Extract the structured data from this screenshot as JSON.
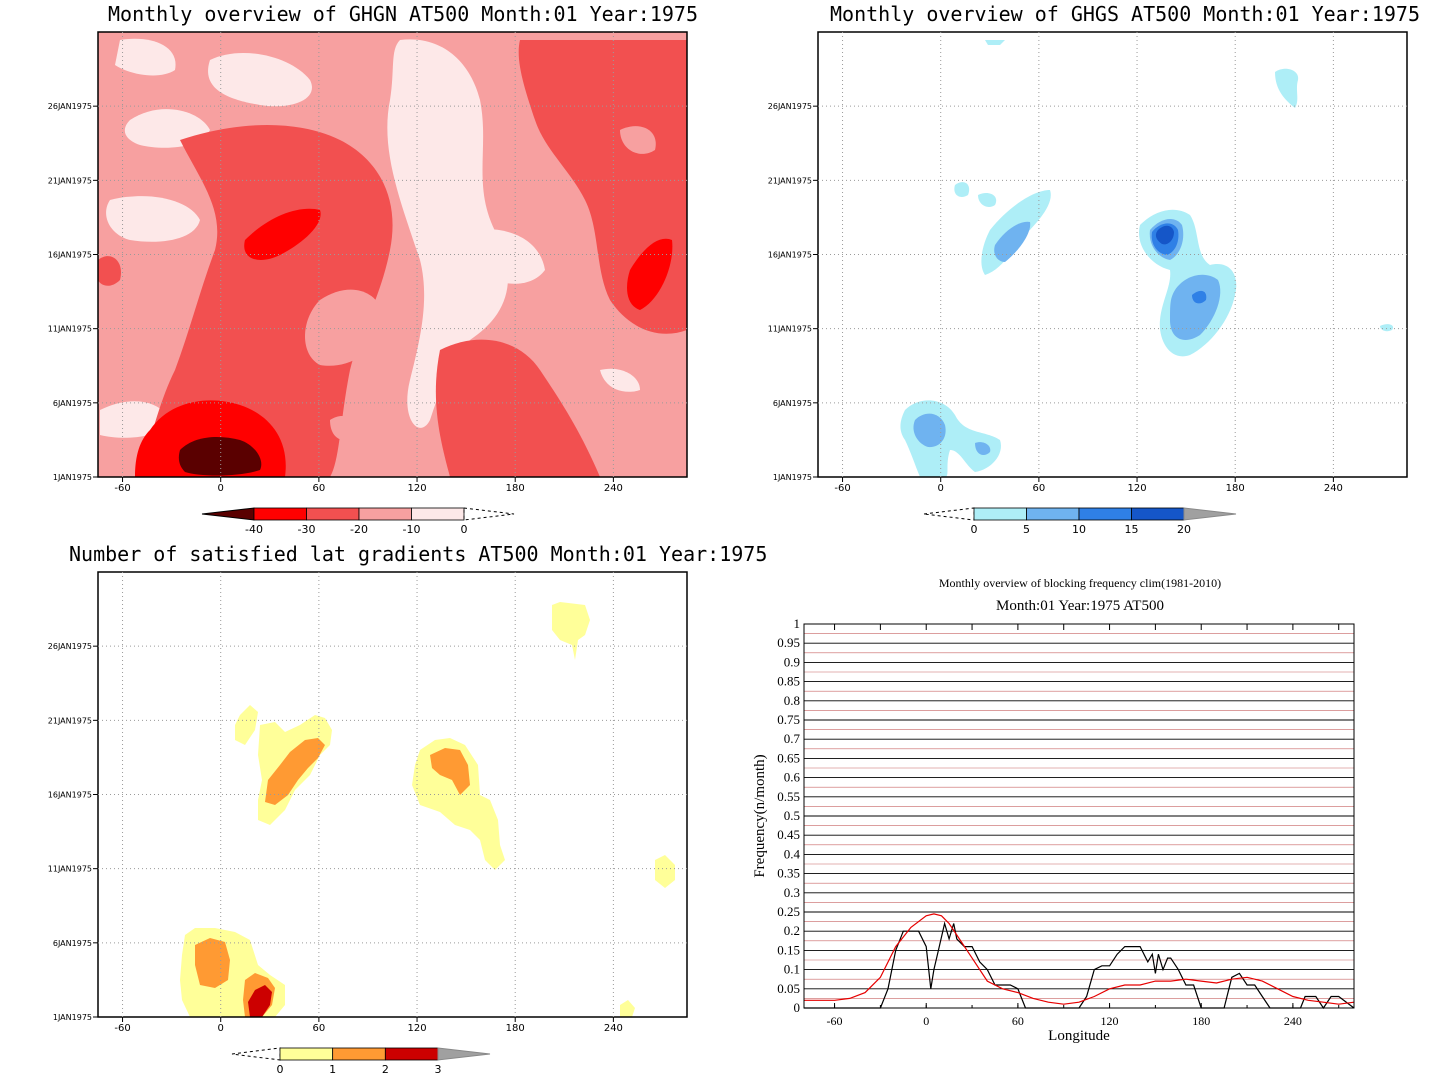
{
  "panels": {
    "ghgn": {
      "title": "Monthly overview of GHGN AT500 Month:01 Year:1975",
      "x_ticks": [
        "-60",
        "0",
        "60",
        "120",
        "180",
        "240"
      ],
      "y_ticks": [
        "1JAN1975",
        "6JAN1975",
        "11JAN1975",
        "16JAN1975",
        "21JAN1975",
        "26JAN1975"
      ],
      "colorbar": {
        "labels": [
          "-40",
          "-30",
          "-20",
          "-10",
          "0"
        ],
        "colors": [
          "#5a0000",
          "#ff0000",
          "#f25050",
          "#f7a0a0",
          "#fde8e8"
        ]
      }
    },
    "ghgs": {
      "title": "Monthly overview of GHGS AT500 Month:01 Year:1975",
      "x_ticks": [
        "-60",
        "0",
        "60",
        "120",
        "180",
        "240"
      ],
      "y_ticks": [
        "1JAN1975",
        "6JAN1975",
        "11JAN1975",
        "16JAN1975",
        "21JAN1975",
        "26JAN1975"
      ],
      "colorbar": {
        "labels": [
          "0",
          "5",
          "10",
          "15",
          "20"
        ],
        "colors": [
          "#aeeef7",
          "#6fb3f0",
          "#2f80e6",
          "#1556c8",
          "#a0a0a0"
        ]
      }
    },
    "lat": {
      "title": "Number of satisfied lat gradients AT500 Month:01 Year:1975",
      "x_ticks": [
        "-60",
        "0",
        "60",
        "120",
        "180",
        "240"
      ],
      "y_ticks": [
        "1JAN1975",
        "6JAN1975",
        "11JAN1975",
        "16JAN1975",
        "21JAN1975",
        "26JAN1975"
      ],
      "colorbar": {
        "labels": [
          "0",
          "1",
          "2",
          "3"
        ],
        "colors": [
          "#ffff99",
          "#ff9a33",
          "#cc0000",
          "#a0a0a0"
        ]
      }
    },
    "freq": {
      "title": "Monthly overview of blocking frequency clim(1981-2010)",
      "subtitle": "Month:01 Year:1975  AT500"
    }
  },
  "chart_data": [
    {
      "type": "heatmap",
      "title": "Monthly overview of GHGN AT500 Month:01 Year:1975",
      "x_range": [
        -75,
        285
      ],
      "y_range_days": [
        1,
        31
      ],
      "levels": [
        -40,
        -30,
        -20,
        -10,
        0
      ],
      "note_features": [
        "deep minimum below -40 near lon -20..10 at 2-3JAN",
        "band below -30 near lon 20..60 at 16-18JAN",
        "band below -30 near lon 240..270 at 13-16JAN"
      ]
    },
    {
      "type": "heatmap",
      "title": "Monthly overview of GHGS AT500 Month:01 Year:1975",
      "x_range": [
        -75,
        285
      ],
      "y_range_days": [
        1,
        31
      ],
      "levels": [
        0,
        5,
        10,
        15,
        20
      ],
      "note_features": [
        "maximum 15-20 near lon 130 at 17JAN",
        "10-15 near lon 145 at 13JAN",
        "5-10 near lon -10 at 4JAN"
      ]
    },
    {
      "type": "heatmap",
      "title": "Number of satisfied lat gradients AT500 Month:01 Year:1975",
      "x_range": [
        -75,
        285
      ],
      "y_range_days": [
        1,
        31
      ],
      "levels": [
        0,
        1,
        2,
        3
      ],
      "note_features": [
        "value 3 near lon 20 at 2JAN",
        "value 2 near lon 40..55 at 17-19JAN",
        "value 2 near lon 135 at 18JAN"
      ]
    },
    {
      "type": "line",
      "title": "Monthly overview of blocking frequency clim(1981-2010)",
      "subtitle": "Month:01 Year:1975  AT500",
      "xlabel": "Longitude",
      "ylabel": "Frequency(n/month)",
      "xlim": [
        -80,
        280
      ],
      "ylim": [
        0,
        1
      ],
      "x_ticks": [
        -60,
        0,
        60,
        120,
        180,
        240
      ],
      "y_ticks": [
        0,
        0.05,
        0.1,
        0.15,
        0.2,
        0.25,
        0.3,
        0.35,
        0.4,
        0.45,
        0.5,
        0.55,
        0.6,
        0.65,
        0.7,
        0.75,
        0.8,
        0.85,
        0.9,
        0.95,
        1
      ],
      "y_tick_labels": [
        "0",
        "0.05",
        "0.1",
        "0.15",
        "0.2",
        "0.25",
        "0.3",
        "0.35",
        "0.4",
        "0.45",
        "0.5",
        "0.55",
        "0.6",
        "0.65",
        "0.7",
        "0.75",
        "0.8",
        "0.85",
        "0.9",
        "0.95",
        "1"
      ],
      "grid": true,
      "series": [
        {
          "color": "#000000",
          "x": [
            -80,
            -30,
            -25,
            -20,
            -15,
            -10,
            -5,
            0,
            3,
            5,
            8,
            12,
            15,
            18,
            20,
            25,
            30,
            35,
            40,
            45,
            50,
            55,
            60,
            62,
            65,
            100,
            105,
            110,
            115,
            120,
            125,
            130,
            135,
            140,
            145,
            148,
            150,
            152,
            155,
            158,
            160,
            165,
            170,
            175,
            180,
            195,
            200,
            205,
            210,
            215,
            220,
            225,
            245,
            248,
            250,
            255,
            260,
            265,
            270,
            280
          ],
          "y": [
            0,
            0,
            0.05,
            0.15,
            0.2,
            0.2,
            0.2,
            0.16,
            0.05,
            0.1,
            0.15,
            0.22,
            0.18,
            0.22,
            0.18,
            0.16,
            0.16,
            0.12,
            0.1,
            0.06,
            0.06,
            0.06,
            0.05,
            0.03,
            0,
            0,
            0.03,
            0.1,
            0.11,
            0.11,
            0.14,
            0.16,
            0.16,
            0.16,
            0.12,
            0.14,
            0.09,
            0.14,
            0.1,
            0.13,
            0.13,
            0.1,
            0.06,
            0.06,
            0,
            0,
            0.08,
            0.09,
            0.06,
            0.06,
            0.03,
            0,
            0,
            0.03,
            0.03,
            0.03,
            0,
            0.03,
            0.03,
            0
          ]
        },
        {
          "color": "#e60000",
          "x": [
            -80,
            -60,
            -50,
            -40,
            -30,
            -20,
            -10,
            0,
            5,
            10,
            15,
            20,
            30,
            40,
            50,
            60,
            70,
            80,
            90,
            100,
            110,
            120,
            130,
            140,
            150,
            160,
            170,
            180,
            190,
            200,
            210,
            220,
            230,
            240,
            250,
            260,
            270,
            280
          ],
          "y": [
            0.02,
            0.02,
            0.025,
            0.04,
            0.08,
            0.16,
            0.21,
            0.24,
            0.245,
            0.24,
            0.22,
            0.19,
            0.13,
            0.07,
            0.05,
            0.04,
            0.025,
            0.015,
            0.01,
            0.015,
            0.03,
            0.05,
            0.06,
            0.06,
            0.07,
            0.07,
            0.075,
            0.07,
            0.065,
            0.075,
            0.08,
            0.07,
            0.05,
            0.03,
            0.02,
            0.015,
            0.01,
            0.015
          ]
        }
      ]
    }
  ]
}
